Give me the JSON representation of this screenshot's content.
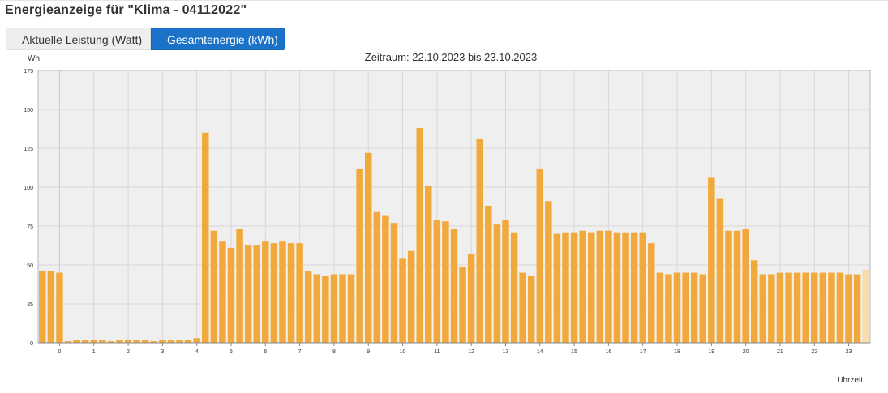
{
  "page": {
    "title": "Energieanzeige für \"Klima - 04112022\""
  },
  "tabs": [
    {
      "label": "Aktuelle Leistung (Watt)",
      "active": false
    },
    {
      "label": "Gesamtenergie (kWh)",
      "active": true
    }
  ],
  "colors": {
    "bar": "#f2a93b",
    "bar_partial": "#f8dbae",
    "plot_bg": "#efefef",
    "tab_active": "#1a73c8"
  },
  "chart_data": {
    "type": "bar",
    "title": "Zeitraum: 22.10.2023 bis 23.10.2023",
    "ylabel": "Wh",
    "xlabel": "Uhrzeit",
    "ylim": [
      0,
      175
    ],
    "yticks": [
      0,
      25,
      50,
      75,
      100,
      125,
      150,
      175
    ],
    "xticks": [
      0,
      1,
      2,
      3,
      4,
      5,
      6,
      7,
      8,
      9,
      10,
      11,
      12,
      13,
      14,
      15,
      16,
      17,
      18,
      19,
      20,
      21,
      22,
      23
    ],
    "x_start_hour": -0.625,
    "bar_interval_hours": 0.25,
    "grid": true,
    "values": [
      46,
      46,
      45,
      1,
      2,
      2,
      2,
      2,
      1,
      2,
      2,
      2,
      2,
      1,
      2,
      2,
      2,
      2,
      3,
      135,
      72,
      65,
      61,
      73,
      63,
      63,
      65,
      64,
      65,
      64,
      64,
      46,
      44,
      43,
      44,
      44,
      44,
      112,
      122,
      84,
      82,
      77,
      54,
      59,
      138,
      101,
      79,
      78,
      73,
      49,
      57,
      131,
      88,
      76,
      79,
      71,
      45,
      43,
      112,
      91,
      70,
      71,
      71,
      72,
      71,
      72,
      72,
      71,
      71,
      71,
      71,
      64,
      45,
      44,
      45,
      45,
      45,
      44,
      106,
      93,
      72,
      72,
      73,
      53,
      44,
      44,
      45,
      45,
      45,
      45,
      45,
      45,
      45,
      45,
      44,
      44,
      47
    ]
  }
}
